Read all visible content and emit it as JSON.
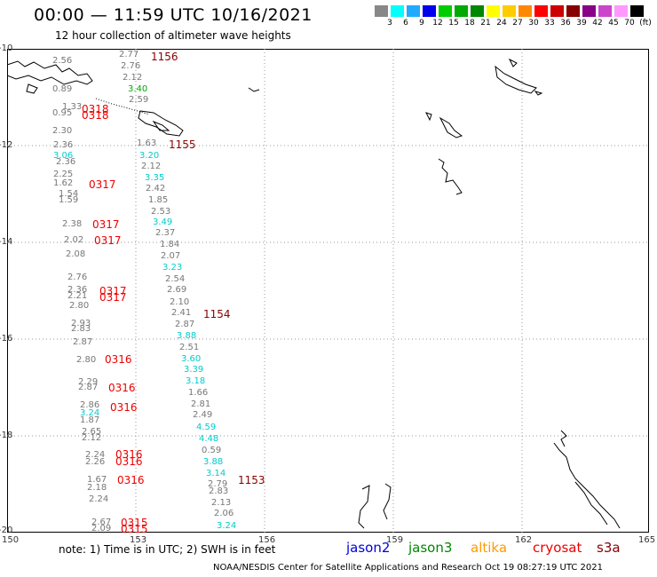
{
  "title": "00:00 — 11:59 UTC 10/16/2021",
  "subtitle": "12 hour collection of altimeter wave heights",
  "legend": {
    "colors": [
      "#888888",
      "#00ffff",
      "#22aaff",
      "#0000ee",
      "#00cc00",
      "#00aa00",
      "#008800",
      "#ffff00",
      "#ffcc00",
      "#ff8800",
      "#ff0000",
      "#cc0000",
      "#880000",
      "#880088",
      "#cc44cc",
      "#ff99ff",
      "#000000"
    ],
    "labels": [
      "3",
      "6",
      "9",
      "12",
      "15",
      "18",
      "21",
      "24",
      "27",
      "30",
      "33",
      "36",
      "39",
      "42",
      "45",
      "70",
      "(ft)"
    ]
  },
  "axes": {
    "y_labels": [
      "-10",
      "-12",
      "-14",
      "-16",
      "-18",
      "-20"
    ],
    "x_labels": [
      "150",
      "153",
      "156",
      "159",
      "162",
      "165"
    ]
  },
  "points": [
    {
      "v": "2.77",
      "c": "#777777"
    },
    {
      "v": "2.76",
      "c": "#777777"
    },
    {
      "v": "2.12",
      "c": "#777777"
    },
    {
      "v": "3.40",
      "c": "#00aa00"
    },
    {
      "v": "2.59",
      "c": "#777777"
    },
    {
      "v": "2.30",
      "c": "#777777"
    },
    {
      "v": "2.36",
      "c": "#777777"
    },
    {
      "v": "3.06",
      "c": "#00cccc"
    },
    {
      "v": "2.36",
      "c": "#777777"
    },
    {
      "v": "2.25",
      "c": "#777777"
    },
    {
      "v": "1.62",
      "c": "#777777"
    },
    {
      "v": "1.54",
      "c": "#777777"
    },
    {
      "v": "1.59",
      "c": "#777777"
    },
    {
      "v": "1.63",
      "c": "#777777"
    },
    {
      "v": "3.20",
      "c": "#00cccc"
    },
    {
      "v": "2.12",
      "c": "#777777"
    },
    {
      "v": "3.35",
      "c": "#00cccc"
    },
    {
      "v": "2.42",
      "c": "#777777"
    },
    {
      "v": "1.85",
      "c": "#777777"
    },
    {
      "v": "2.53",
      "c": "#777777"
    },
    {
      "v": "3.49",
      "c": "#00cccc"
    },
    {
      "v": "2.37",
      "c": "#777777"
    },
    {
      "v": "1.84",
      "c": "#777777"
    },
    {
      "v": "2.07",
      "c": "#777777"
    },
    {
      "v": "3.23",
      "c": "#00cccc"
    },
    {
      "v": "2.54",
      "c": "#777777"
    },
    {
      "v": "2.69",
      "c": "#777777"
    },
    {
      "v": "2.10",
      "c": "#777777"
    },
    {
      "v": "2.41",
      "c": "#777777"
    },
    {
      "v": "2.87",
      "c": "#777777"
    },
    {
      "v": "3.88",
      "c": "#00cccc"
    },
    {
      "v": "2.51",
      "c": "#777777"
    },
    {
      "v": "3.60",
      "c": "#00cccc"
    },
    {
      "v": "3.39",
      "c": "#00cccc"
    },
    {
      "v": "3.18",
      "c": "#00cccc"
    },
    {
      "v": "1.66",
      "c": "#777777"
    },
    {
      "v": "2.81",
      "c": "#777777"
    },
    {
      "v": "2.49",
      "c": "#777777"
    },
    {
      "v": "4.59",
      "c": "#00cccc"
    },
    {
      "v": "4.48",
      "c": "#00cccc"
    },
    {
      "v": "0.59",
      "c": "#777777"
    },
    {
      "v": "3.88",
      "c": "#00cccc"
    },
    {
      "v": "3.14",
      "c": "#00cccc"
    },
    {
      "v": "2.79",
      "c": "#777777"
    },
    {
      "v": "2.83",
      "c": "#777777"
    },
    {
      "v": "2.13",
      "c": "#777777"
    },
    {
      "v": "2.06",
      "c": "#777777"
    },
    {
      "v": "3.24",
      "c": "#00cccc"
    },
    {
      "v": "2.38",
      "c": "#777777"
    },
    {
      "v": "2.02",
      "c": "#777777"
    },
    {
      "v": "2.08",
      "c": "#777777"
    },
    {
      "v": "2.76",
      "c": "#777777"
    },
    {
      "v": "2.36",
      "c": "#777777"
    },
    {
      "v": "2.21",
      "c": "#777777"
    },
    {
      "v": "2.80",
      "c": "#777777"
    },
    {
      "v": "2.93",
      "c": "#777777"
    },
    {
      "v": "2.83",
      "c": "#777777"
    },
    {
      "v": "2.87",
      "c": "#777777"
    },
    {
      "v": "2.80",
      "c": "#777777"
    },
    {
      "v": "2.29",
      "c": "#777777"
    },
    {
      "v": "2.87",
      "c": "#777777"
    },
    {
      "v": "2.86",
      "c": "#777777"
    },
    {
      "v": "3.24",
      "c": "#00cccc"
    },
    {
      "v": "1.87",
      "c": "#777777"
    },
    {
      "v": "2.65",
      "c": "#777777"
    },
    {
      "v": "2.12",
      "c": "#777777"
    },
    {
      "v": "2.24",
      "c": "#777777"
    },
    {
      "v": "2.26",
      "c": "#777777"
    },
    {
      "v": "1.67",
      "c": "#777777"
    },
    {
      "v": "2.18",
      "c": "#777777"
    },
    {
      "v": "2.24",
      "c": "#777777"
    },
    {
      "v": "2.67",
      "c": "#777777"
    },
    {
      "v": "2.09",
      "c": "#777777"
    },
    {
      "v": "0.95",
      "c": "#777777"
    },
    {
      "v": "1.33",
      "c": "#777777"
    },
    {
      "v": "0.89",
      "c": "#777777"
    },
    {
      "v": "2.56",
      "c": "#777777"
    }
  ],
  "times": [
    {
      "v": "1156",
      "c": "#880000"
    },
    {
      "v": "0318",
      "c": "#ee0000"
    },
    {
      "v": "0318",
      "c": "#ee0000"
    },
    {
      "v": "1155",
      "c": "#880000"
    },
    {
      "v": "0317",
      "c": "#ee0000"
    },
    {
      "v": "0317",
      "c": "#ee0000"
    },
    {
      "v": "0317",
      "c": "#ee0000"
    },
    {
      "v": "0317",
      "c": "#ee0000"
    },
    {
      "v": "0317",
      "c": "#ee0000"
    },
    {
      "v": "1154",
      "c": "#880000"
    },
    {
      "v": "0316",
      "c": "#ee0000"
    },
    {
      "v": "0316",
      "c": "#ee0000"
    },
    {
      "v": "0316",
      "c": "#ee0000"
    },
    {
      "v": "0316",
      "c": "#ee0000"
    },
    {
      "v": "0316",
      "c": "#ee0000"
    },
    {
      "v": "0316",
      "c": "#ee0000"
    },
    {
      "v": "1153",
      "c": "#880000"
    },
    {
      "v": "0315",
      "c": "#ee0000"
    },
    {
      "v": "0315",
      "c": "#ee0000"
    }
  ],
  "note": "note: 1) Time is in UTC; 2) SWH is in feet",
  "satellites": [
    {
      "name": "jason2",
      "color": "#0000dd"
    },
    {
      "name": "jason3",
      "color": "#008800"
    },
    {
      "name": "altika",
      "color": "#ff9900"
    },
    {
      "name": "cryosat",
      "color": "#ee0000"
    },
    {
      "name": "s3a",
      "color": "#880000"
    }
  ],
  "footer": "NOAA/NESDIS Center for Satellite Applications and Research   Oct 19 08:27:19 UTC 2021"
}
